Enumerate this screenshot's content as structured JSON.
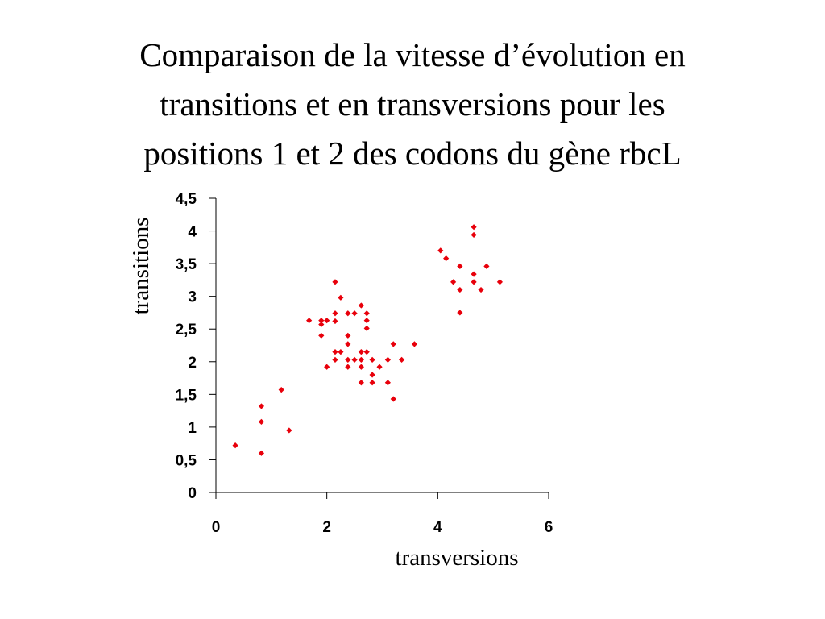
{
  "slide": {
    "title_lines": [
      "Comparaison de la vitesse d’évolution en",
      "transitions et en transversions pour les",
      "positions 1 et 2 des codons du gène rbcL"
    ]
  },
  "chart_data": {
    "type": "scatter",
    "title": "",
    "xlabel": "transversions",
    "ylabel": "transitions",
    "xlim": [
      0,
      6
    ],
    "ylim": [
      0,
      4.5
    ],
    "x_ticks": [
      "0",
      "2",
      "4",
      "6"
    ],
    "x_tick_values": [
      0,
      2,
      4,
      6
    ],
    "y_ticks": [
      "0",
      "0,5",
      "1",
      "1,5",
      "2",
      "2,5",
      "3",
      "3,5",
      "4",
      "4,5"
    ],
    "y_tick_values": [
      0,
      0.5,
      1,
      1.5,
      2,
      2.5,
      3,
      3.5,
      4,
      4.5
    ],
    "grid": false,
    "marker_color": "#e8000b",
    "axis_color": "#000000",
    "points": [
      [
        0.35,
        0.72
      ],
      [
        0.82,
        1.32
      ],
      [
        0.82,
        1.08
      ],
      [
        0.82,
        0.6
      ],
      [
        1.18,
        1.57
      ],
      [
        1.32,
        0.95
      ],
      [
        1.68,
        2.63
      ],
      [
        1.9,
        2.63
      ],
      [
        1.9,
        2.4
      ],
      [
        1.9,
        2.57
      ],
      [
        2.0,
        2.63
      ],
      [
        2.0,
        1.92
      ],
      [
        2.15,
        3.22
      ],
      [
        2.15,
        2.74
      ],
      [
        2.15,
        2.62
      ],
      [
        2.15,
        2.15
      ],
      [
        2.15,
        2.03
      ],
      [
        2.25,
        2.98
      ],
      [
        2.25,
        2.15
      ],
      [
        2.38,
        2.74
      ],
      [
        2.38,
        2.4
      ],
      [
        2.38,
        2.27
      ],
      [
        2.38,
        2.03
      ],
      [
        2.38,
        1.92
      ],
      [
        2.5,
        2.74
      ],
      [
        2.5,
        2.03
      ],
      [
        2.62,
        2.86
      ],
      [
        2.62,
        2.15
      ],
      [
        2.62,
        2.03
      ],
      [
        2.62,
        1.92
      ],
      [
        2.62,
        1.68
      ],
      [
        2.72,
        2.74
      ],
      [
        2.72,
        2.63
      ],
      [
        2.72,
        2.51
      ],
      [
        2.72,
        2.15
      ],
      [
        2.82,
        2.03
      ],
      [
        2.82,
        1.8
      ],
      [
        2.82,
        1.68
      ],
      [
        2.95,
        1.92
      ],
      [
        3.1,
        2.03
      ],
      [
        3.1,
        1.68
      ],
      [
        3.2,
        2.27
      ],
      [
        3.2,
        1.43
      ],
      [
        3.35,
        2.03
      ],
      [
        3.58,
        2.27
      ],
      [
        4.05,
        3.7
      ],
      [
        4.15,
        3.58
      ],
      [
        4.28,
        3.22
      ],
      [
        4.4,
        3.46
      ],
      [
        4.4,
        3.1
      ],
      [
        4.4,
        2.75
      ],
      [
        4.65,
        4.06
      ],
      [
        4.65,
        3.94
      ],
      [
        4.65,
        3.34
      ],
      [
        4.65,
        3.22
      ],
      [
        4.78,
        3.1
      ],
      [
        4.88,
        3.46
      ],
      [
        5.12,
        3.22
      ]
    ]
  }
}
